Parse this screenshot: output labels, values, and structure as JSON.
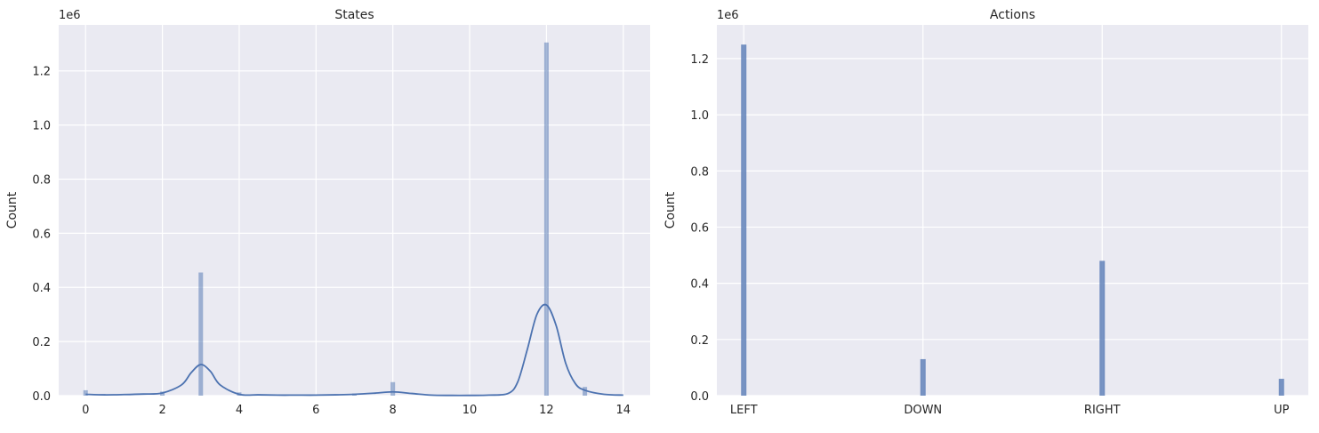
{
  "chart_data": [
    {
      "type": "bar",
      "title": "States",
      "xlabel": "",
      "ylabel": "Count",
      "offset_label": "1e6",
      "xlim": [
        -0.7,
        14.7
      ],
      "ylim": [
        0,
        1.37
      ],
      "xticks": [
        0,
        2,
        4,
        6,
        8,
        10,
        12,
        14
      ],
      "yticks": [
        0.0,
        0.2,
        0.4,
        0.6,
        0.8,
        1.0,
        1.2
      ],
      "ytick_labels": [
        "0.0",
        "0.2",
        "0.4",
        "0.6",
        "0.8",
        "1.0",
        "1.2"
      ],
      "grid": true,
      "bars": [
        {
          "x": 0,
          "value": 0.02
        },
        {
          "x": 2,
          "value": 0.015
        },
        {
          "x": 3,
          "value": 0.455
        },
        {
          "x": 4,
          "value": 0.012
        },
        {
          "x": 7,
          "value": 0.008
        },
        {
          "x": 8,
          "value": 0.05
        },
        {
          "x": 12,
          "value": 1.305
        },
        {
          "x": 13,
          "value": 0.032
        }
      ],
      "kde": {
        "x": [
          0,
          0.5,
          1,
          1.5,
          2,
          2.5,
          2.75,
          3,
          3.25,
          3.5,
          4,
          4.5,
          5,
          5.5,
          6,
          6.5,
          7,
          7.5,
          8,
          8.5,
          9,
          9.5,
          10,
          10.5,
          11,
          11.25,
          11.5,
          11.75,
          12,
          12.25,
          12.5,
          12.75,
          13,
          13.5,
          14
        ],
        "y": [
          0.005,
          0.003,
          0.004,
          0.006,
          0.01,
          0.04,
          0.085,
          0.115,
          0.09,
          0.04,
          0.005,
          0.003,
          0.002,
          0.002,
          0.002,
          0.003,
          0.005,
          0.009,
          0.014,
          0.008,
          0.002,
          0.001,
          0.001,
          0.002,
          0.008,
          0.05,
          0.17,
          0.3,
          0.335,
          0.26,
          0.12,
          0.045,
          0.02,
          0.005,
          0.002
        ]
      },
      "colors": {
        "bar": "#4c72b0",
        "line": "#4c72b0",
        "background": "#eaeaf2",
        "grid": "#ffffff"
      }
    },
    {
      "type": "bar",
      "title": "Actions",
      "xlabel": "",
      "ylabel": "Count",
      "offset_label": "1e6",
      "xlim": [
        -0.15,
        3.15
      ],
      "ylim": [
        0,
        1.32
      ],
      "categories": [
        "LEFT",
        "DOWN",
        "RIGHT",
        "UP"
      ],
      "values": [
        1.25,
        0.13,
        0.48,
        0.06
      ],
      "yticks": [
        0.0,
        0.2,
        0.4,
        0.6,
        0.8,
        1.0,
        1.2
      ],
      "ytick_labels": [
        "0.0",
        "0.2",
        "0.4",
        "0.6",
        "0.8",
        "1.0",
        "1.2"
      ],
      "grid": true,
      "colors": {
        "bar": "#4c72b0",
        "background": "#eaeaf2",
        "grid": "#ffffff"
      }
    }
  ]
}
